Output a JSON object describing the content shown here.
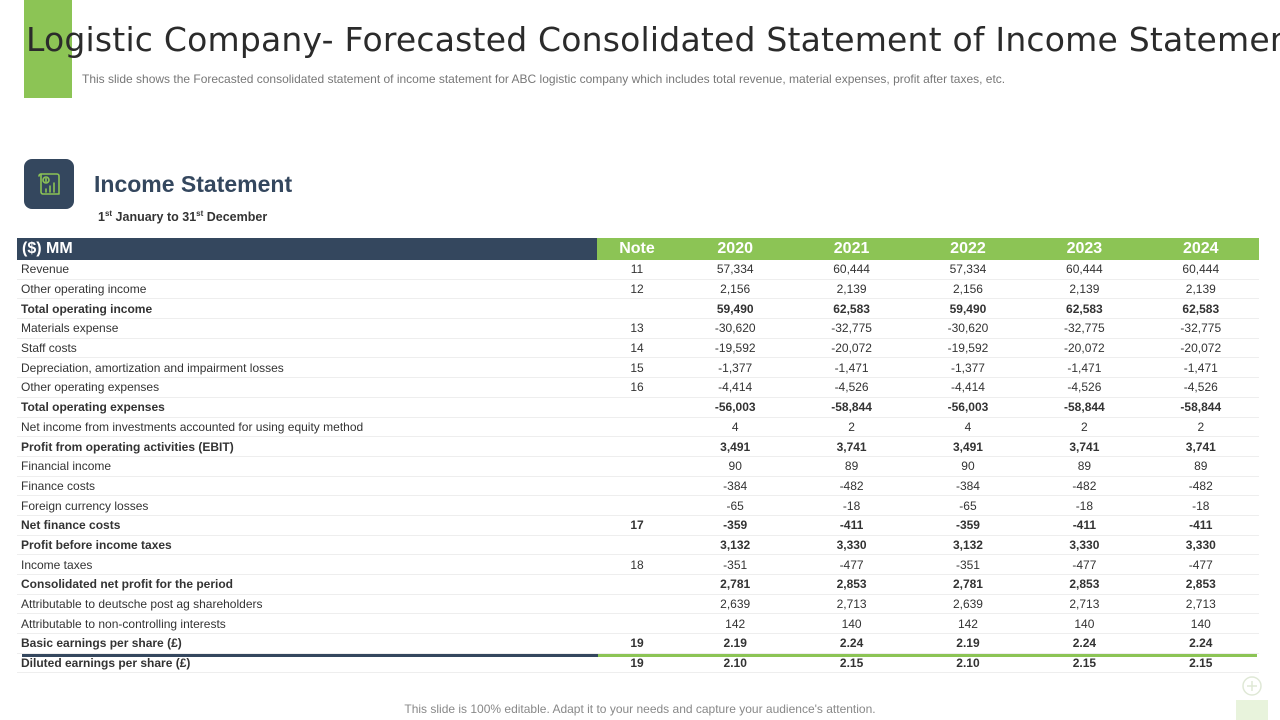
{
  "header": {
    "title": "Logistic Company- Forecasted Consolidated Statement of Income Statement",
    "subtitle": "This slide shows the Forecasted consolidated statement of income statement for ABC logistic company which includes total revenue,  material expenses, profit after taxes, etc."
  },
  "section": {
    "icon": "financial-report-icon",
    "title": "Income Statement",
    "period": {
      "day1": "1",
      "sup1": "st",
      "mid": " January to 31",
      "sup2": "st",
      "end": " December"
    }
  },
  "table": {
    "headers": [
      "($) MM",
      "Note",
      "2020",
      "2021",
      "2022",
      "2023",
      "2024"
    ],
    "rows": [
      {
        "label": "Revenue",
        "note": "11",
        "values": [
          "57,334",
          "60,444",
          "57,334",
          "60,444",
          "60,444"
        ],
        "bold": false
      },
      {
        "label": "Other operating income",
        "note": "12",
        "values": [
          "2,156",
          "2,139",
          "2,156",
          "2,139",
          "2,139"
        ],
        "bold": false
      },
      {
        "label": "Total operating income",
        "note": "",
        "values": [
          "59,490",
          "62,583",
          "59,490",
          "62,583",
          "62,583"
        ],
        "bold": true
      },
      {
        "label": "Materials expense",
        "note": "13",
        "values": [
          "-30,620",
          "-32,775",
          "-30,620",
          "-32,775",
          "-32,775"
        ],
        "bold": false
      },
      {
        "label": "Staff costs",
        "note": "14",
        "values": [
          "-19,592",
          "-20,072",
          "-19,592",
          "-20,072",
          "-20,072"
        ],
        "bold": false
      },
      {
        "label": "Depreciation, amortization and impairment losses",
        "note": "15",
        "values": [
          "-1,377",
          "-1,471",
          "-1,377",
          "-1,471",
          "-1,471"
        ],
        "bold": false
      },
      {
        "label": "Other operating expenses",
        "note": "16",
        "values": [
          "-4,414",
          "-4,526",
          "-4,414",
          "-4,526",
          "-4,526"
        ],
        "bold": false
      },
      {
        "label": "Total operating expenses",
        "note": "",
        "values": [
          "-56,003",
          "-58,844",
          "-56,003",
          "-58,844",
          "-58,844"
        ],
        "bold": true
      },
      {
        "label": "Net income from investments accounted for using equity method",
        "note": "",
        "values": [
          "4",
          "2",
          "4",
          "2",
          "2"
        ],
        "bold": false
      },
      {
        "label": "Profit from operating activities (EBIT)",
        "note": "",
        "values": [
          "3,491",
          "3,741",
          "3,491",
          "3,741",
          "3,741"
        ],
        "bold": true
      },
      {
        "label": "Financial income",
        "note": "",
        "values": [
          "90",
          "89",
          "90",
          "89",
          "89"
        ],
        "bold": false
      },
      {
        "label": "Finance costs",
        "note": "",
        "values": [
          "-384",
          "-482",
          "-384",
          "-482",
          "-482"
        ],
        "bold": false
      },
      {
        "label": "Foreign currency losses",
        "note": "",
        "values": [
          "-65",
          "-18",
          "-65",
          "-18",
          "-18"
        ],
        "bold": false
      },
      {
        "label": "Net finance costs",
        "note": "17",
        "values": [
          "-359",
          "-411",
          "-359",
          "-411",
          "-411"
        ],
        "bold": true
      },
      {
        "label": "Profit before income taxes",
        "note": "",
        "values": [
          "3,132",
          "3,330",
          "3,132",
          "3,330",
          "3,330"
        ],
        "bold": true
      },
      {
        "label": "Income taxes",
        "note": "18",
        "values": [
          "-351",
          "-477",
          "-351",
          "-477",
          "-477"
        ],
        "bold": false
      },
      {
        "label": "Consolidated net profit for the period",
        "note": "",
        "values": [
          "2,781",
          "2,853",
          "2,781",
          "2,853",
          "2,853"
        ],
        "bold": true
      },
      {
        "label": "Attributable to deutsche post ag shareholders",
        "note": "",
        "values": [
          "2,639",
          "2,713",
          "2,639",
          "2,713",
          "2,713"
        ],
        "bold": false
      },
      {
        "label": "Attributable to non-controlling interests",
        "note": "",
        "values": [
          "142",
          "140",
          "142",
          "140",
          "140"
        ],
        "bold": false
      },
      {
        "label": "Basic earnings per share (£)",
        "note": "19",
        "values": [
          "2.19",
          "2.24",
          "2.19",
          "2.24",
          "2.24"
        ],
        "bold": true
      },
      {
        "label": "Diluted earnings per share (£)",
        "note": "19",
        "values": [
          "2.10",
          "2.15",
          "2.10",
          "2.15",
          "2.15"
        ],
        "bold": true
      }
    ]
  },
  "footer": {
    "text": "This slide is 100% editable. Adapt it to your needs and capture your audience's attention."
  },
  "colors": {
    "accent_green": "#8cc455",
    "navy": "#34475e"
  }
}
